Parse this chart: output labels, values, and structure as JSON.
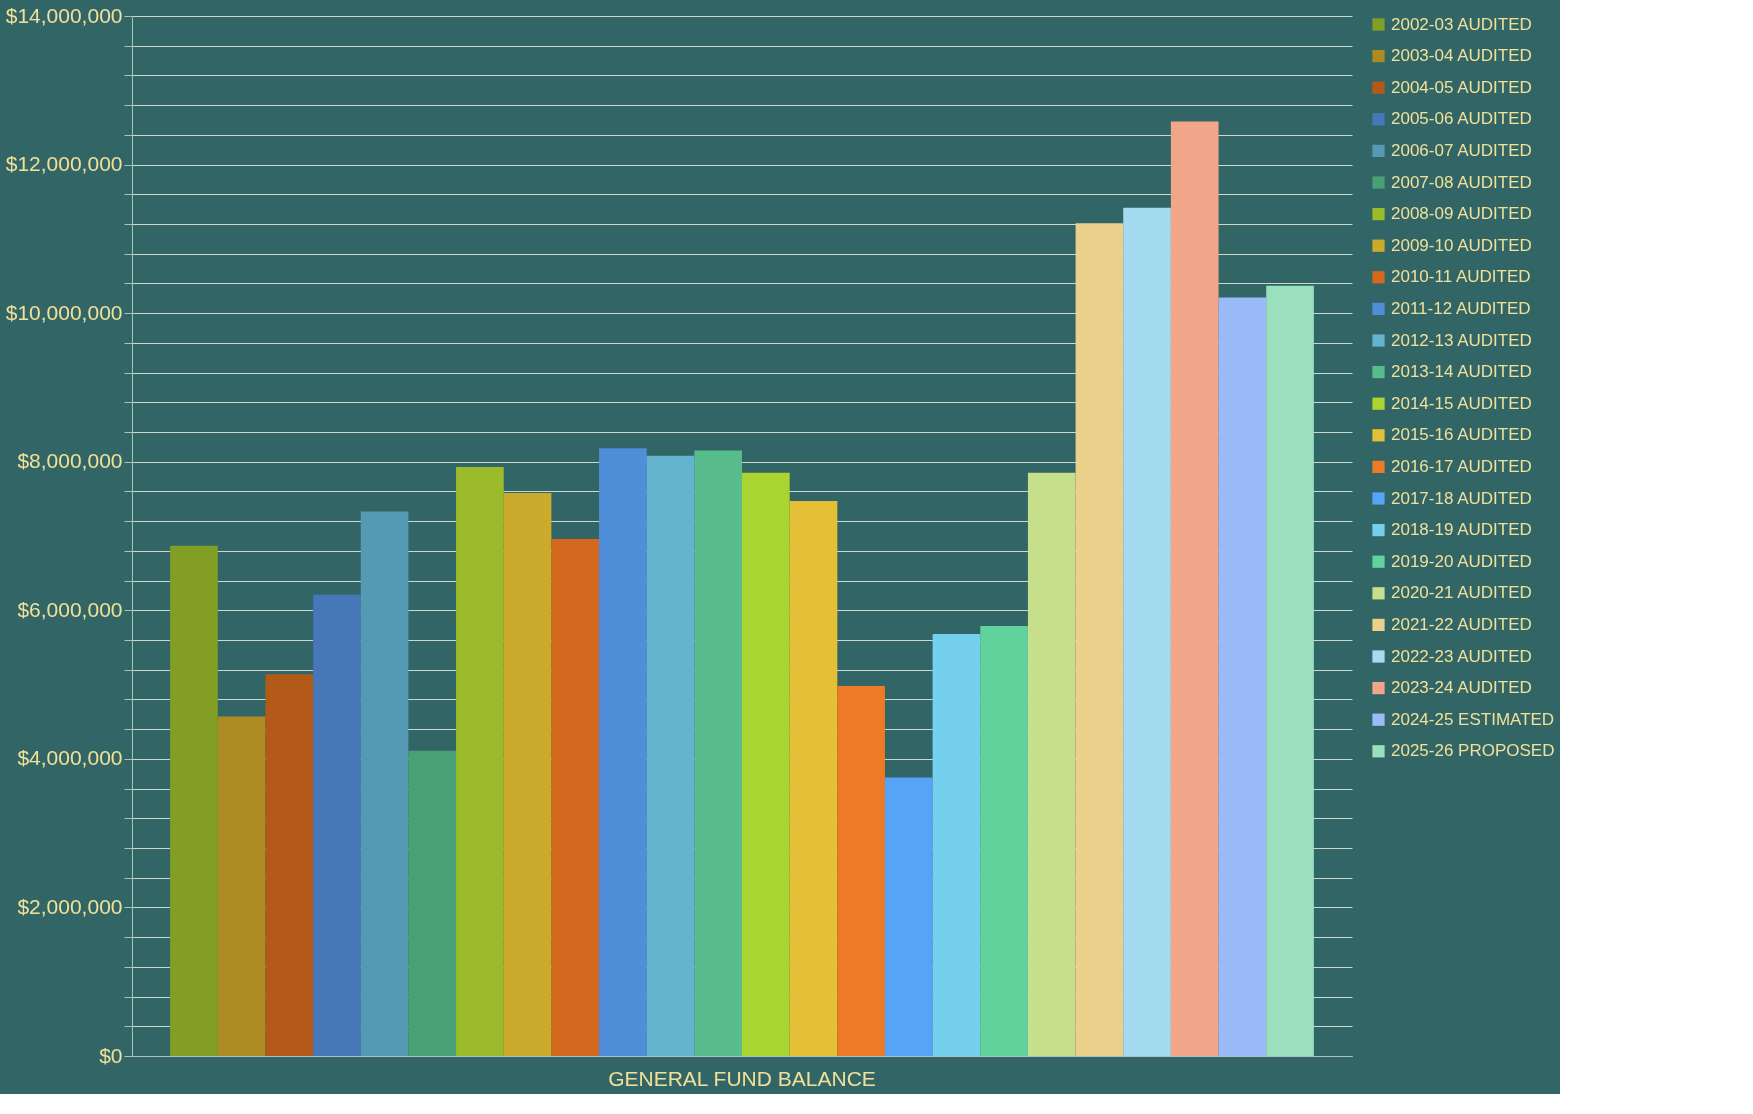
{
  "chart_data": {
    "type": "bar",
    "categories": [
      "GENERAL FUND BALANCE"
    ],
    "series": [
      {
        "name": "2002-03 AUDITED",
        "color": "#829e25",
        "values": [
          6870000
        ]
      },
      {
        "name": "2003-04 AUDITED",
        "color": "#ad8b23",
        "values": [
          4570000
        ]
      },
      {
        "name": "2004-05 AUDITED",
        "color": "#b45a19",
        "values": [
          5140000
        ]
      },
      {
        "name": "2005-06 AUDITED",
        "color": "#4677b8",
        "values": [
          6210000
        ]
      },
      {
        "name": "2006-07 AUDITED",
        "color": "#5699b4",
        "values": [
          7330000
        ]
      },
      {
        "name": "2007-08 AUDITED",
        "color": "#48a074",
        "values": [
          4110000
        ]
      },
      {
        "name": "2008-09 AUDITED",
        "color": "#9bbb2a",
        "values": [
          7930000
        ]
      },
      {
        "name": "2009-10 AUDITED",
        "color": "#ccaa2c",
        "values": [
          7580000
        ]
      },
      {
        "name": "2010-11 AUDITED",
        "color": "#d5681f",
        "values": [
          6960000
        ]
      },
      {
        "name": "2011-12 AUDITED",
        "color": "#4f8ed8",
        "values": [
          8180000
        ]
      },
      {
        "name": "2012-13 AUDITED",
        "color": "#64b4d0",
        "values": [
          8080000
        ]
      },
      {
        "name": "2013-14 AUDITED",
        "color": "#58bc8c",
        "values": [
          8150000
        ]
      },
      {
        "name": "2014-15 AUDITED",
        "color": "#aad42f",
        "values": [
          7850000
        ]
      },
      {
        "name": "2015-16 AUDITED",
        "color": "#e3c035",
        "values": [
          7470000
        ]
      },
      {
        "name": "2016-17 AUDITED",
        "color": "#ec7a26",
        "values": [
          4980000
        ]
      },
      {
        "name": "2017-18 AUDITED",
        "color": "#57a3f7",
        "values": [
          3750000
        ]
      },
      {
        "name": "2018-19 AUDITED",
        "color": "#74d0ec",
        "values": [
          5680000
        ]
      },
      {
        "name": "2019-20 AUDITED",
        "color": "#62d29c",
        "values": [
          5790000
        ]
      },
      {
        "name": "2020-21 AUDITED",
        "color": "#c5df8a",
        "values": [
          7850000
        ]
      },
      {
        "name": "2021-22 AUDITED",
        "color": "#ebd08c",
        "values": [
          11210000
        ]
      },
      {
        "name": "2022-23 AUDITED",
        "color": "#a5dbf0",
        "values": [
          11420000
        ]
      },
      {
        "name": "2023-24 AUDITED",
        "color": "#f1a689",
        "values": [
          12580000
        ]
      },
      {
        "name": "2024-25 ESTIMATED",
        "color": "#9abbf7",
        "values": [
          10210000
        ]
      },
      {
        "name": "2025-26 PROPOSED",
        "color": "#9ae0bd",
        "values": [
          10370000
        ]
      }
    ],
    "ylim": [
      0,
      14000000
    ],
    "yticks": [
      {
        "value": 0,
        "label": "$0"
      },
      {
        "value": 400000,
        "label": null
      },
      {
        "value": 800000,
        "label": null
      },
      {
        "value": 1200000,
        "label": null
      },
      {
        "value": 1600000,
        "label": null
      },
      {
        "value": 2000000,
        "label": "$2,000,000"
      },
      {
        "value": 2400000,
        "label": null
      },
      {
        "value": 2800000,
        "label": null
      },
      {
        "value": 3200000,
        "label": null
      },
      {
        "value": 3600000,
        "label": null
      },
      {
        "value": 4000000,
        "label": "$4,000,000"
      },
      {
        "value": 4400000,
        "label": null
      },
      {
        "value": 4800000,
        "label": null
      },
      {
        "value": 5200000,
        "label": null
      },
      {
        "value": 5600000,
        "label": null
      },
      {
        "value": 6000000,
        "label": "$6,000,000"
      },
      {
        "value": 6400000,
        "label": null
      },
      {
        "value": 6800000,
        "label": null
      },
      {
        "value": 7200000,
        "label": null
      },
      {
        "value": 7600000,
        "label": null
      },
      {
        "value": 8000000,
        "label": "$8,000,000"
      },
      {
        "value": 8400000,
        "label": null
      },
      {
        "value": 8800000,
        "label": null
      },
      {
        "value": 9200000,
        "label": null
      },
      {
        "value": 9600000,
        "label": null
      },
      {
        "value": 10000000,
        "label": "$10,000,000"
      },
      {
        "value": 10400000,
        "label": null
      },
      {
        "value": 10800000,
        "label": null
      },
      {
        "value": 11200000,
        "label": null
      },
      {
        "value": 11600000,
        "label": null
      },
      {
        "value": 12000000,
        "label": "$12,000,000"
      },
      {
        "value": 12400000,
        "label": null
      },
      {
        "value": 12800000,
        "label": null
      },
      {
        "value": 13200000,
        "label": null
      },
      {
        "value": 13600000,
        "label": null
      },
      {
        "value": 14000000,
        "label": "$14,000,000"
      }
    ],
    "grid": "y",
    "legend": "right"
  }
}
